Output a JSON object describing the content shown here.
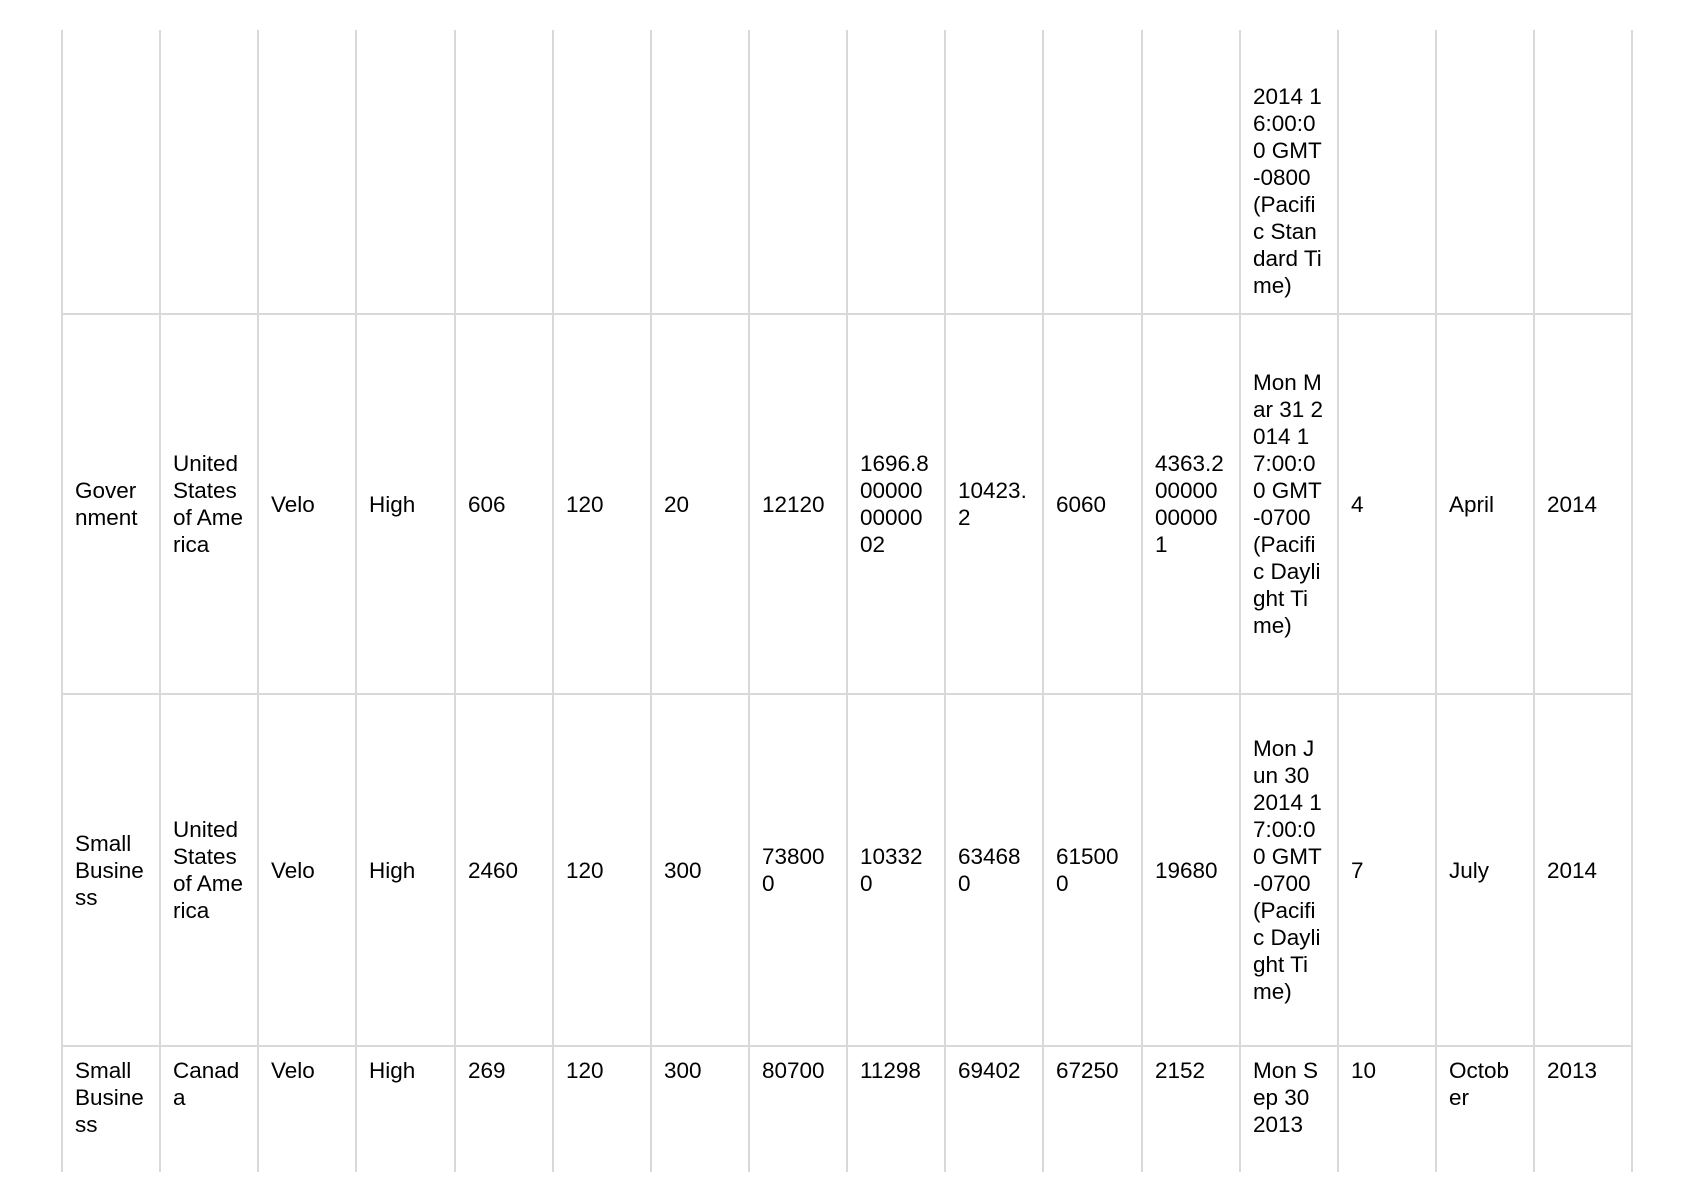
{
  "rows": [
    {
      "segment": "",
      "country": "",
      "product": "",
      "discount_band": "",
      "units_sold": "",
      "manufacturing_price": "",
      "sale_price": "",
      "gross_sales": "",
      "discounts": "",
      "sales": "",
      "cogs": "",
      "profit": "",
      "date": "2014 16:00:00 GMT-0800 (Pacific Standard Time)",
      "month_number": "",
      "month_name": "",
      "year": ""
    },
    {
      "segment": "Government",
      "country": "United States of America",
      "product": "Velo",
      "discount_band": "High",
      "units_sold": "606",
      "manufacturing_price": "120",
      "sale_price": "20",
      "gross_sales": "12120",
      "discounts": "1696.8000000000002",
      "sales": "10423.2",
      "cogs": "6060",
      "profit": "4363.200000000001",
      "date": "Mon Mar 31 2014 17:00:00 GMT-0700 (Pacific Daylight Time)",
      "month_number": "4",
      "month_name": "April",
      "year": "2014"
    },
    {
      "segment": "Small Business",
      "country": "United States of America",
      "product": "Velo",
      "discount_band": "High",
      "units_sold": "2460",
      "manufacturing_price": "120",
      "sale_price": "300",
      "gross_sales": "738000",
      "discounts": "103320",
      "sales": "634680",
      "cogs": "615000",
      "profit": "19680",
      "date": "Mon Jun 30 2014 17:00:00 GMT-0700 (Pacific Daylight Time)",
      "month_number": "7",
      "month_name": "July",
      "year": "2014"
    },
    {
      "segment": "Small Business",
      "country": "Canada",
      "product": "Velo",
      "discount_band": "High",
      "units_sold": "269",
      "manufacturing_price": "120",
      "sale_price": "300",
      "gross_sales": "80700",
      "discounts": "11298",
      "sales": "69402",
      "cogs": "67250",
      "profit": "2152",
      "date": "Mon Sep 30 2013",
      "month_number": "10",
      "month_name": "October",
      "year": "2013"
    }
  ]
}
